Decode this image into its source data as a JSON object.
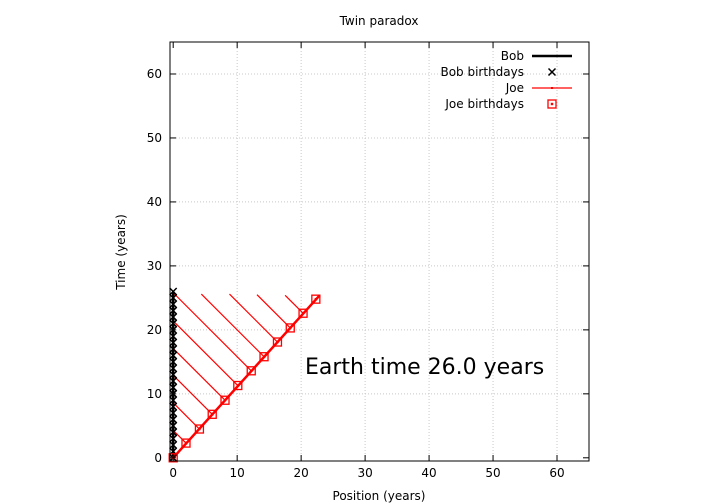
{
  "chart_data": {
    "type": "line",
    "title": "Twin paradox",
    "xlabel": "Position (years)",
    "ylabel": "Time (years)",
    "xlim": [
      -0.5,
      65
    ],
    "ylim": [
      -0.5,
      65
    ],
    "xticks": [
      0,
      10,
      20,
      30,
      40,
      50,
      60
    ],
    "yticks": [
      0,
      10,
      20,
      30,
      40,
      50,
      60
    ],
    "grid": true,
    "legend_position": "top-right",
    "annotation": "Earth time 26.0 years",
    "series": [
      {
        "name": "Bob",
        "color": "#000000",
        "marker": "line",
        "x": [
          0,
          0
        ],
        "y": [
          0,
          26.0
        ]
      },
      {
        "name": "Bob birthdays",
        "color": "#000000",
        "marker": "cross",
        "x": [
          0,
          0,
          0,
          0,
          0,
          0,
          0,
          0,
          0,
          0,
          0,
          0,
          0,
          0,
          0,
          0,
          0,
          0,
          0,
          0,
          0,
          0,
          0,
          0,
          0,
          0,
          0
        ],
        "y": [
          0,
          1,
          2,
          3,
          4,
          5,
          6,
          7,
          8,
          9,
          10,
          11,
          12,
          13,
          14,
          15,
          16,
          17,
          18,
          19,
          20,
          21,
          22,
          23,
          24,
          25,
          26
        ]
      },
      {
        "name": "Joe",
        "color": "#ff0000",
        "marker": "line",
        "x": [
          0,
          22.9
        ],
        "y": [
          0,
          25.4
        ]
      },
      {
        "name": "Joe birthdays",
        "color": "#ff0000",
        "marker": "square",
        "x": [
          0,
          2.0,
          4.1,
          6.1,
          8.1,
          10.1,
          12.2,
          14.2,
          16.3,
          18.3,
          20.3,
          22.3
        ],
        "y": [
          0,
          2.3,
          4.5,
          6.8,
          9.0,
          11.3,
          13.6,
          15.8,
          18.1,
          20.3,
          22.6,
          24.8
        ]
      },
      {
        "name": "",
        "color": "#ff0000",
        "marker": "segments",
        "segments": [
          {
            "x1": 2.0,
            "y1": 2.3,
            "x2": 0,
            "y2": 4.3
          },
          {
            "x1": 4.1,
            "y1": 4.5,
            "x2": 0,
            "y2": 8.6
          },
          {
            "x1": 6.1,
            "y1": 6.8,
            "x2": 0,
            "y2": 12.9
          },
          {
            "x1": 8.1,
            "y1": 9.0,
            "x2": 0,
            "y2": 17.1
          },
          {
            "x1": 10.1,
            "y1": 11.3,
            "x2": 0,
            "y2": 21.4
          },
          {
            "x1": 12.2,
            "y1": 13.6,
            "x2": 0,
            "y2": 25.8
          },
          {
            "x1": 14.2,
            "y1": 15.8,
            "x2": 4.4,
            "y2": 25.6
          },
          {
            "x1": 16.3,
            "y1": 18.1,
            "x2": 8.8,
            "y2": 25.6
          },
          {
            "x1": 18.3,
            "y1": 20.3,
            "x2": 13.1,
            "y2": 25.5
          },
          {
            "x1": 20.3,
            "y1": 22.6,
            "x2": 17.5,
            "y2": 25.4
          }
        ]
      }
    ]
  }
}
